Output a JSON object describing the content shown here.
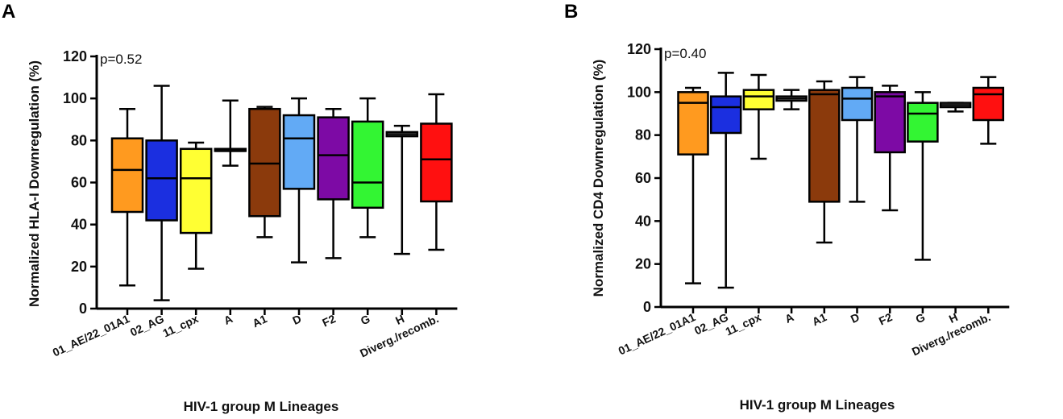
{
  "chart_data": [
    {
      "type": "box",
      "panel": "A",
      "ylabel": "Normalized HLA-I  Downregulation (%)",
      "xlabel": "HIV-1 group M Lineages",
      "annotation": "p=0.52",
      "ylim": [
        0,
        120
      ],
      "yticks": [
        "0",
        "20",
        "40",
        "60",
        "80",
        "100",
        "120"
      ],
      "categories": [
        "01_AE/22_01A1",
        "02_AG",
        "11_cpx",
        "A",
        "A1",
        "D",
        "F2",
        "G",
        "H",
        "Diverg./recomb."
      ],
      "colors": [
        "#ff9a1f",
        "#1b2fe0",
        "#ffff33",
        "#ffffff",
        "#8b3a0c",
        "#62aaf5",
        "#7d0aa5",
        "#33f533",
        "#ffffff",
        "#ff1010"
      ],
      "stats": [
        {
          "min": 11,
          "q1": 46,
          "median": 66,
          "q3": 81,
          "max": 95
        },
        {
          "min": 4,
          "q1": 42,
          "median": 62,
          "q3": 80,
          "max": 106
        },
        {
          "min": 19,
          "q1": 36,
          "median": 62,
          "q3": 76,
          "max": 79
        },
        {
          "min": 68,
          "q1": 75,
          "median": 75,
          "q3": 76,
          "max": 99
        },
        {
          "min": 34,
          "q1": 44,
          "median": 69,
          "q3": 95,
          "max": 96
        },
        {
          "min": 22,
          "q1": 57,
          "median": 81,
          "q3": 92,
          "max": 100
        },
        {
          "min": 24,
          "q1": 52,
          "median": 73,
          "q3": 91,
          "max": 95
        },
        {
          "min": 34,
          "q1": 48,
          "median": 60,
          "q3": 89,
          "max": 100
        },
        {
          "min": 26,
          "q1": 82,
          "median": 83,
          "q3": 84,
          "max": 87
        },
        {
          "min": 28,
          "q1": 51,
          "median": 71,
          "q3": 88,
          "max": 102
        }
      ]
    },
    {
      "type": "box",
      "panel": "B",
      "ylabel": "Normalized CD4 Downregulation (%)",
      "xlabel": "HIV-1 group M Lineages",
      "annotation": "p=0.40",
      "ylim": [
        0,
        120
      ],
      "yticks": [
        "0",
        "20",
        "40",
        "60",
        "80",
        "100",
        "120"
      ],
      "categories": [
        "01_AE/22_01A1",
        "02_AG",
        "11_cpx",
        "A",
        "A1",
        "D",
        "F2",
        "G",
        "H",
        "Diverg./recomb."
      ],
      "colors": [
        "#ff9a1f",
        "#1b2fe0",
        "#ffff33",
        "#ffffff",
        "#8b3a0c",
        "#62aaf5",
        "#7d0aa5",
        "#33f533",
        "#ffffff",
        "#ff1010"
      ],
      "stats": [
        {
          "min": 11,
          "q1": 71,
          "median": 95,
          "q3": 100,
          "max": 102
        },
        {
          "min": 9,
          "q1": 81,
          "median": 93,
          "q3": 98,
          "max": 109
        },
        {
          "min": 69,
          "q1": 92,
          "median": 98,
          "q3": 101,
          "max": 108
        },
        {
          "min": 92,
          "q1": 96,
          "median": 97,
          "q3": 98,
          "max": 101
        },
        {
          "min": 30,
          "q1": 49,
          "median": 99,
          "q3": 101,
          "max": 105
        },
        {
          "min": 49,
          "q1": 87,
          "median": 97,
          "q3": 102,
          "max": 107
        },
        {
          "min": 45,
          "q1": 72,
          "median": 98,
          "q3": 100,
          "max": 103
        },
        {
          "min": 22,
          "q1": 77,
          "median": 90,
          "q3": 95,
          "max": 100
        },
        {
          "min": 91,
          "q1": 93,
          "median": 94,
          "q3": 95,
          "max": 95
        },
        {
          "min": 76,
          "q1": 87,
          "median": 99,
          "q3": 102,
          "max": 107
        }
      ]
    }
  ]
}
